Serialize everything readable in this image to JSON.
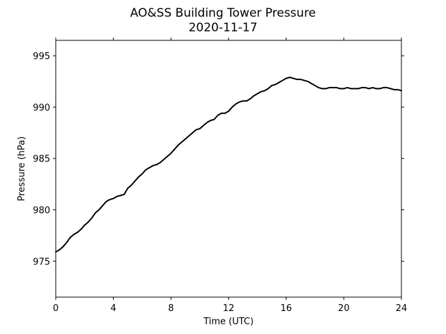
{
  "chart_data": {
    "type": "line",
    "title": "AO&SS Building Tower Pressure",
    "subtitle": "2020-11-17",
    "xlabel": "Time (UTC)",
    "ylabel": "Pressure (hPa)",
    "xlim": [
      0,
      24
    ],
    "ylim": [
      971.5,
      996.5
    ],
    "xticks": [
      0,
      4,
      8,
      12,
      16,
      20,
      24
    ],
    "yticks": [
      975,
      980,
      985,
      990,
      995
    ],
    "grid": false,
    "line_color": "#000000",
    "series": [
      {
        "x": [
          0,
          0.25,
          0.5,
          0.75,
          1,
          1.25,
          1.5,
          1.75,
          2,
          2.25,
          2.5,
          2.75,
          3,
          3.25,
          3.5,
          3.75,
          4,
          4.25,
          4.5,
          4.75,
          5,
          5.25,
          5.5,
          5.75,
          6,
          6.25,
          6.5,
          6.75,
          7,
          7.25,
          7.5,
          7.75,
          8,
          8.25,
          8.5,
          8.75,
          9,
          9.25,
          9.5,
          9.75,
          10,
          10.25,
          10.5,
          10.75,
          11,
          11.25,
          11.5,
          11.75,
          12,
          12.25,
          12.5,
          12.75,
          13,
          13.25,
          13.5,
          13.75,
          14,
          14.25,
          14.5,
          14.75,
          15,
          15.25,
          15.5,
          15.75,
          16,
          16.25,
          16.5,
          16.75,
          17,
          17.25,
          17.5,
          17.75,
          18,
          18.25,
          18.5,
          18.75,
          19,
          19.25,
          19.5,
          19.75,
          20,
          20.25,
          20.5,
          20.75,
          21,
          21.25,
          21.5,
          21.75,
          22,
          22.25,
          22.5,
          22.75,
          23,
          23.25,
          23.5,
          23.75,
          24
        ],
        "y": [
          975.9,
          976.1,
          976.4,
          976.8,
          977.3,
          977.6,
          977.8,
          978.1,
          978.5,
          978.8,
          979.2,
          979.7,
          980.0,
          980.4,
          980.8,
          981.0,
          981.1,
          981.3,
          981.4,
          981.5,
          982.1,
          982.4,
          982.8,
          983.2,
          983.5,
          983.9,
          984.1,
          984.3,
          984.4,
          984.6,
          984.9,
          985.2,
          985.5,
          985.9,
          986.3,
          986.6,
          986.9,
          987.2,
          987.5,
          987.8,
          987.9,
          988.2,
          988.5,
          988.7,
          988.8,
          989.2,
          989.4,
          989.4,
          989.6,
          990.0,
          990.3,
          990.5,
          990.6,
          990.6,
          990.8,
          991.1,
          991.3,
          991.5,
          991.6,
          991.8,
          992.1,
          992.2,
          992.4,
          992.6,
          992.8,
          992.9,
          992.8,
          992.7,
          992.7,
          992.6,
          992.5,
          992.3,
          992.1,
          991.9,
          991.8,
          991.8,
          991.9,
          991.9,
          991.9,
          991.8,
          991.8,
          991.9,
          991.8,
          991.8,
          991.8,
          991.9,
          991.9,
          991.8,
          991.9,
          991.8,
          991.8,
          991.9,
          991.9,
          991.8,
          991.7,
          991.7,
          991.6
        ]
      }
    ]
  }
}
